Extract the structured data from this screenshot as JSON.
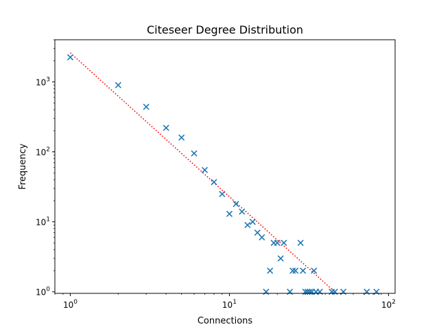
{
  "chart_data": {
    "type": "scatter",
    "title": "Citeseer Degree Distribution",
    "xlabel": "Connections",
    "ylabel": "Frequency",
    "xscale": "log",
    "yscale": "log",
    "xlim": [
      0.8,
      110
    ],
    "ylim": [
      0.95,
      4000
    ],
    "x_ticks": [
      {
        "value": 1,
        "base": "10",
        "exp": "0"
      },
      {
        "value": 10,
        "base": "10",
        "exp": "1"
      },
      {
        "value": 100,
        "base": "10",
        "exp": "2"
      }
    ],
    "y_ticks": [
      {
        "value": 1,
        "base": "10",
        "exp": "0"
      },
      {
        "value": 10,
        "base": "10",
        "exp": "1"
      },
      {
        "value": 100,
        "base": "10",
        "exp": "2"
      },
      {
        "value": 1000,
        "base": "10",
        "exp": "3"
      }
    ],
    "grid": false,
    "legend": "none",
    "marker": "x",
    "marker_color": "#1f77b4",
    "fit_line_color": "#ff0000",
    "fit_line_style": "dotted",
    "points": [
      {
        "x": 1,
        "y": 2250
      },
      {
        "x": 2,
        "y": 900
      },
      {
        "x": 3,
        "y": 440
      },
      {
        "x": 4,
        "y": 220
      },
      {
        "x": 5,
        "y": 160
      },
      {
        "x": 6,
        "y": 95
      },
      {
        "x": 7,
        "y": 55
      },
      {
        "x": 8,
        "y": 37
      },
      {
        "x": 9,
        "y": 25
      },
      {
        "x": 10,
        "y": 13
      },
      {
        "x": 11,
        "y": 18
      },
      {
        "x": 12,
        "y": 14
      },
      {
        "x": 13,
        "y": 9
      },
      {
        "x": 14,
        "y": 10
      },
      {
        "x": 15,
        "y": 7
      },
      {
        "x": 16,
        "y": 6
      },
      {
        "x": 17,
        "y": 1
      },
      {
        "x": 18,
        "y": 2
      },
      {
        "x": 19,
        "y": 5
      },
      {
        "x": 20,
        "y": 5
      },
      {
        "x": 21,
        "y": 3
      },
      {
        "x": 22,
        "y": 5
      },
      {
        "x": 24,
        "y": 1
      },
      {
        "x": 25,
        "y": 2
      },
      {
        "x": 26,
        "y": 2
      },
      {
        "x": 28,
        "y": 5
      },
      {
        "x": 29,
        "y": 2
      },
      {
        "x": 30,
        "y": 1
      },
      {
        "x": 31,
        "y": 1
      },
      {
        "x": 32,
        "y": 1
      },
      {
        "x": 33,
        "y": 1
      },
      {
        "x": 34,
        "y": 2
      },
      {
        "x": 35,
        "y": 1
      },
      {
        "x": 37,
        "y": 1
      },
      {
        "x": 44,
        "y": 1
      },
      {
        "x": 46,
        "y": 1
      },
      {
        "x": 52,
        "y": 1
      },
      {
        "x": 73,
        "y": 1
      },
      {
        "x": 84,
        "y": 1
      }
    ],
    "fit_line": [
      {
        "x": 1,
        "y": 2600
      },
      {
        "x": 47,
        "y": 0.95
      }
    ]
  }
}
